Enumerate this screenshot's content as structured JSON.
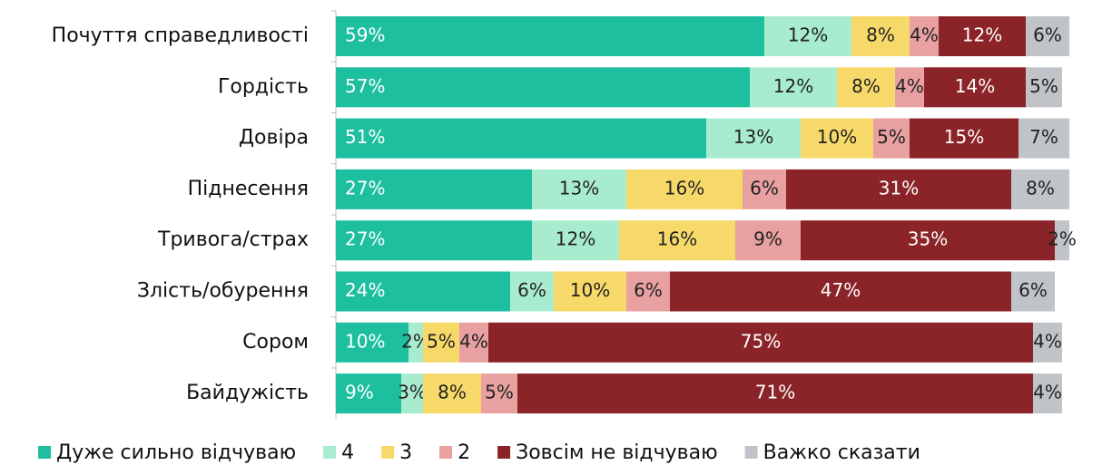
{
  "chart_data": {
    "type": "stacked_bar_horizontal",
    "categories": [
      "Почуття справедливості",
      "Гордість",
      "Довіра",
      "Піднесення",
      "Тривога/страх",
      "Злість/обурення",
      "Сором",
      "Байдужість"
    ],
    "series": [
      {
        "name": "Дуже сильно відчуваю",
        "color": "#1dbf9f",
        "values": [
          59,
          57,
          51,
          27,
          27,
          24,
          10,
          9
        ],
        "value_labels": [
          "59%",
          "57%",
          "51%",
          "27%",
          "27%",
          "24%",
          "10%",
          "9%"
        ]
      },
      {
        "name": "4",
        "color": "#a8ecd0",
        "values": [
          12,
          12,
          13,
          13,
          12,
          6,
          2,
          3
        ],
        "value_labels": [
          "12%",
          "12%",
          "13%",
          "13%",
          "12%",
          "6%",
          "2%",
          "3%"
        ]
      },
      {
        "name": "3",
        "color": "#f7d96a",
        "values": [
          8,
          8,
          10,
          16,
          16,
          10,
          5,
          8
        ],
        "value_labels": [
          "8%",
          "8%",
          "10%",
          "16%",
          "16%",
          "10%",
          "5%",
          "8%"
        ]
      },
      {
        "name": "2",
        "color": "#e8a0a0",
        "values": [
          4,
          4,
          5,
          6,
          9,
          6,
          4,
          5
        ],
        "value_labels": [
          "4%",
          "4%",
          "5%",
          "6%",
          "9%",
          "6%",
          "4%",
          "5%"
        ]
      },
      {
        "name": "Зовсім не відчуваю",
        "color": "#8b2428",
        "values": [
          12,
          14,
          15,
          31,
          35,
          47,
          75,
          71
        ],
        "value_labels": [
          "12%",
          "14%",
          "15%",
          "31%",
          "35%",
          "47%",
          "75%",
          "71%"
        ]
      },
      {
        "name": "Важко сказати",
        "color": "#c0c4c8",
        "values": [
          6,
          5,
          7,
          8,
          2,
          6,
          4,
          4
        ],
        "value_labels": [
          "6%",
          "5%",
          "7%",
          "8%",
          "2%",
          "6%",
          "4%",
          "4%"
        ]
      }
    ]
  }
}
